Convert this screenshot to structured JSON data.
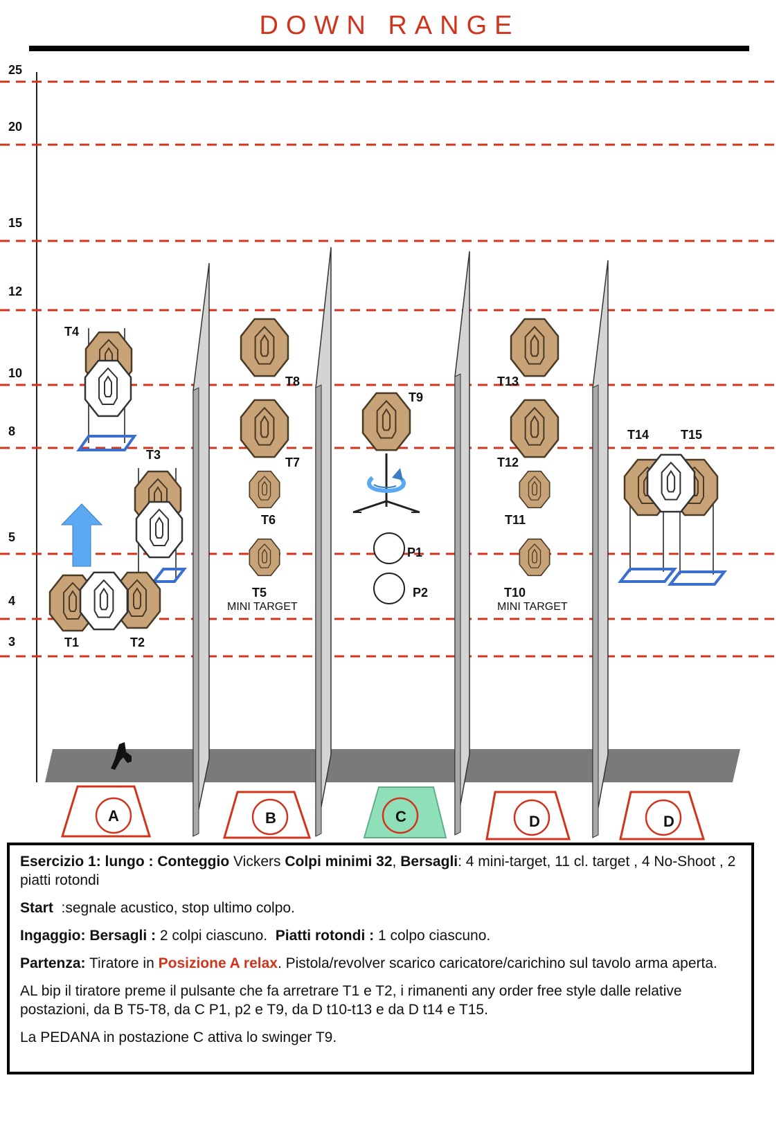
{
  "title": "DOWN RANGE",
  "scale": {
    "labels": [
      "25",
      "20",
      "15",
      "12",
      "10",
      "8",
      "5",
      "4",
      "3"
    ]
  },
  "colors": {
    "accent": "#d0341c",
    "target": "#c8a377",
    "target_stroke": "#4a3a26",
    "noshoot": "#ffffff",
    "wall": "#d4d4d4",
    "floor": "#7a7a7a",
    "stand": "#3a6fd0",
    "arrow": "#5aa9f2",
    "station_active": "#8fe0b8"
  },
  "targets": {
    "t1": "T1",
    "t2": "T2",
    "t3": "T3",
    "t4": "T4",
    "t5": "T5",
    "t6": "T6",
    "t7": "T7",
    "t8": "T8",
    "t9": "T9",
    "t10": "T10",
    "t11": "T11",
    "t12": "T12",
    "t13": "T13",
    "t14": "T14",
    "t15": "T15",
    "p1": "P1",
    "p2": "P2",
    "mini_a": "MINI TARGET",
    "mini_b": "MINI TARGET"
  },
  "stations": [
    "A",
    "B",
    "C",
    "D",
    "D"
  ],
  "icons": [
    "pistol-icon",
    "forward-arrow-icon",
    "rotation-arrow-icon"
  ],
  "brief": {
    "line1_a": "Esercizio 1: lungo : Conteggio",
    "line1_b": "Vickers",
    "line1_c": "Colpi minimi 32",
    "line1_d": ",",
    "line1_e": "Bersagli",
    "line1_f": ": 4 mini-target, 11 cl. target , 4 No-Shoot , 2 piatti rotondi",
    "start_label": "Start",
    "start_text": ":segnale acustico, stop ultimo colpo.",
    "ingaggio_label": "Ingaggio: Bersagli :",
    "ingaggio_text": "2 colpi ciascuno.",
    "piatti_label": "Piatti  rotondi :",
    "piatti_text": "1 colpo ciascuno.",
    "partenza_label": "Partenza:",
    "partenza_text1": "Tiratore in",
    "partenza_pos": "Posizione A relax",
    "partenza_text2": ". Pistola/revolver scarico caricatore/carichino sul tavolo arma aperta.",
    "al_bip": "AL bip il tiratore preme il pulsante che fa arretrare T1 e T2, i rimanenti any order free style dalle relative postazioni, da B T5-T8, da C P1, p2 e T9, da D t10-t13 e da D t14 e T15.",
    "pedana": "La PEDANA in postazione C attiva lo swinger T9."
  }
}
